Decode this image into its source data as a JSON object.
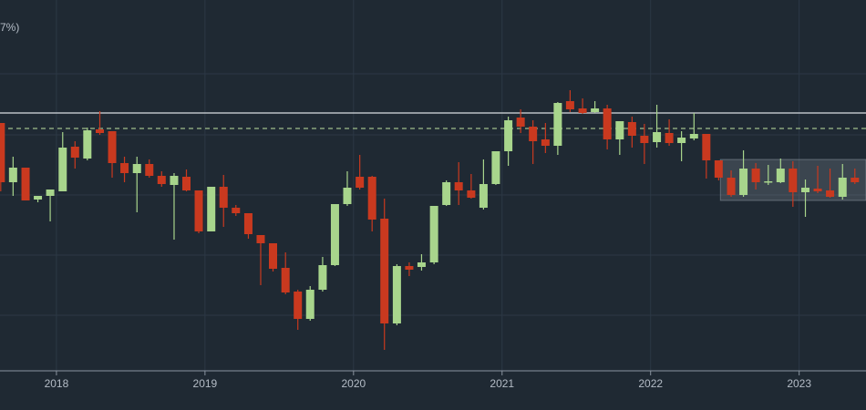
{
  "chart_data": {
    "type": "candlestick",
    "subtitle": "7%)",
    "x": [
      2017.625,
      2017.708,
      2017.792,
      2017.875,
      2017.958,
      2018.042,
      2018.125,
      2018.208,
      2018.292,
      2018.375,
      2018.458,
      2018.542,
      2018.625,
      2018.708,
      2018.792,
      2018.875,
      2018.958,
      2019.042,
      2019.125,
      2019.208,
      2019.292,
      2019.375,
      2019.458,
      2019.542,
      2019.625,
      2019.708,
      2019.792,
      2019.875,
      2019.958,
      2020.042,
      2020.125,
      2020.208,
      2020.292,
      2020.375,
      2020.458,
      2020.542,
      2020.625,
      2020.708,
      2020.792,
      2020.875,
      2020.958,
      2021.042,
      2021.125,
      2021.208,
      2021.292,
      2021.375,
      2021.458,
      2021.542,
      2021.625,
      2021.708,
      2021.792,
      2021.875,
      2021.958,
      2022.042,
      2022.125,
      2022.208,
      2022.292,
      2022.375,
      2022.458,
      2022.542,
      2022.625,
      2022.708,
      2022.792,
      2022.875,
      2022.958,
      2023.042,
      2023.125,
      2023.208,
      2023.292,
      2023.375
    ],
    "open": [
      272,
      207,
      223,
      188,
      192,
      197,
      246,
      233,
      265,
      263,
      228,
      217,
      227,
      214,
      204,
      213,
      198,
      153,
      202,
      179,
      173,
      149,
      140,
      113,
      87,
      57,
      89,
      116,
      183,
      213,
      213,
      167,
      52,
      115,
      114,
      119,
      182,
      207,
      198,
      179,
      205,
      241,
      278,
      268,
      254,
      247,
      296,
      288,
      284,
      288,
      254,
      273,
      258,
      251,
      261,
      250,
      255,
      260,
      231,
      212,
      193,
      222,
      207,
      207,
      222,
      196,
      200,
      198,
      191,
      212
    ],
    "high": [
      272,
      235,
      223,
      192,
      199,
      262,
      252,
      267,
      285,
      263,
      235,
      235,
      232,
      219,
      217,
      221,
      198,
      202,
      215,
      182,
      173,
      149,
      140,
      130,
      89,
      93,
      125,
      183,
      219,
      237,
      214,
      189,
      117,
      119,
      128,
      181,
      209,
      229,
      216,
      232,
      241,
      279,
      287,
      275,
      272,
      295,
      308,
      299,
      296,
      292,
      274,
      279,
      271,
      292,
      276,
      263,
      283,
      260,
      231,
      220,
      242,
      228,
      226,
      233,
      230,
      210,
      225,
      222,
      227,
      222
    ],
    "low": [
      197,
      192,
      187,
      185,
      164,
      197,
      222,
      231,
      259,
      212,
      207,
      174,
      212,
      202,
      144,
      197,
      151,
      153,
      158,
      170,
      145,
      94,
      109,
      84,
      45,
      55,
      87,
      115,
      181,
      199,
      153,
      23,
      50,
      104,
      110,
      117,
      181,
      182,
      189,
      177,
      204,
      225,
      261,
      227,
      239,
      237,
      284,
      282,
      283,
      243,
      237,
      245,
      227,
      245,
      247,
      230,
      253,
      211,
      209,
      191,
      191,
      199,
      204,
      206,
      180,
      169,
      195,
      190,
      188,
      205
    ],
    "close": [
      207,
      223,
      187,
      192,
      199,
      245,
      234,
      264,
      261,
      228,
      217,
      227,
      214,
      205,
      214,
      198,
      153,
      202,
      179,
      173,
      150,
      140,
      112,
      86,
      57,
      89,
      116,
      183,
      201,
      201,
      166,
      52,
      115,
      111,
      119,
      181,
      207,
      198,
      190,
      205,
      241,
      275,
      268,
      252,
      247,
      294,
      287,
      283,
      288,
      254,
      274,
      258,
      250,
      262,
      250,
      256,
      260,
      231,
      212,
      193,
      222,
      207,
      208,
      222,
      196,
      201,
      197,
      191,
      212,
      207
    ],
    "up_color": "#a8d58c",
    "down_color": "#c9391f",
    "xlim": [
      2017.62,
      2023.45
    ],
    "ylim": [
      0,
      407
    ],
    "xticks": [
      2018,
      2019,
      2020,
      2021,
      2022,
      2023
    ],
    "ygrid": [
      61,
      127,
      193,
      259,
      326
    ],
    "reference_lines": [
      {
        "value": 283,
        "style": "solid",
        "color": "#d9dde2"
      },
      {
        "value": 266,
        "style": "dashed",
        "color": "#9fbf8a"
      }
    ],
    "zone": {
      "xlim": [
        2022.47,
        2023.45
      ],
      "ylim": [
        187,
        232
      ]
    },
    "grid": true
  }
}
